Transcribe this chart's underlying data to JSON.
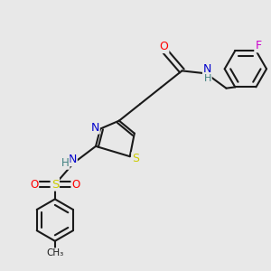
{
  "bg_color": "#e8e8e8",
  "bond_color": "#1a1a1a",
  "bond_width": 1.5,
  "atom_colors": {
    "O": "#ff0000",
    "N": "#0000cc",
    "S": "#cccc00",
    "F": "#cc00cc",
    "C": "#1a1a1a",
    "H": "#408080"
  },
  "fs": 8.5
}
